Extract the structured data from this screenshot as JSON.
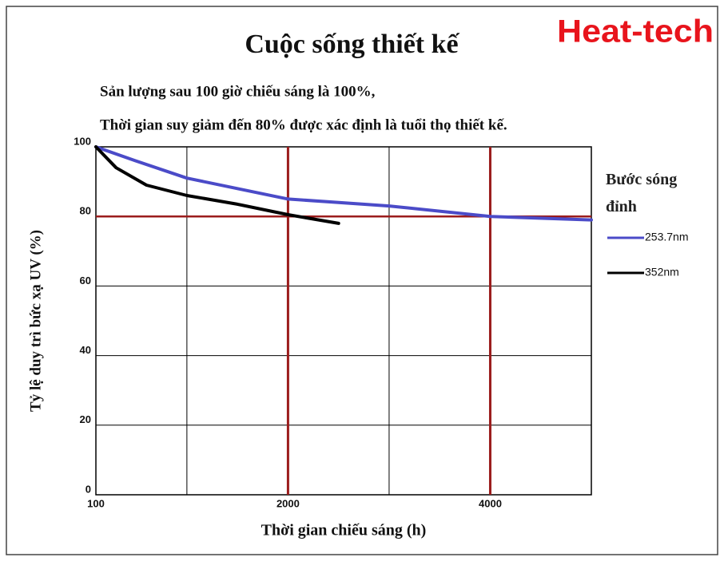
{
  "chart_data": {
    "type": "line",
    "title": "Cuộc sống thiết kế",
    "brand": "Heat-tech",
    "subtitle": [
      "Sản lượng sau 100 giờ chiếu sáng là 100%,",
      "Thời gian suy giảm đến 80% được xác định là tuổi thọ thiết kế."
    ],
    "x_label": "Thời gian chiếu sáng (h)",
    "y_label": "Tỷ lệ duy trì bức xạ UV (%)",
    "legend_title": "Bước sóng đỉnh",
    "xlim": [
      100,
      5000
    ],
    "ylim": [
      0,
      100
    ],
    "xticks": [
      100,
      2000,
      4000
    ],
    "yticks": [
      0,
      20,
      40,
      60,
      80,
      100
    ],
    "xgrid": [
      1000,
      2000,
      3000,
      4000
    ],
    "grid": true,
    "highlight_x": [
      2000,
      4000
    ],
    "highlight_y": [
      80
    ],
    "highlight_color": "#9b1c1c",
    "series": [
      {
        "name": "253.7nm",
        "color": "#4b4bc8",
        "x": [
          100,
          490,
          1000,
          1500,
          2000,
          3000,
          4000,
          5000
        ],
        "values": [
          100,
          96,
          91,
          88,
          85,
          83,
          80,
          79
        ]
      },
      {
        "name": "352nm",
        "color": "#000000",
        "x": [
          100,
          300,
          600,
          1000,
          1500,
          2000,
          2500
        ],
        "values": [
          100,
          94,
          89,
          86,
          83.5,
          80.5,
          78
        ]
      }
    ]
  }
}
